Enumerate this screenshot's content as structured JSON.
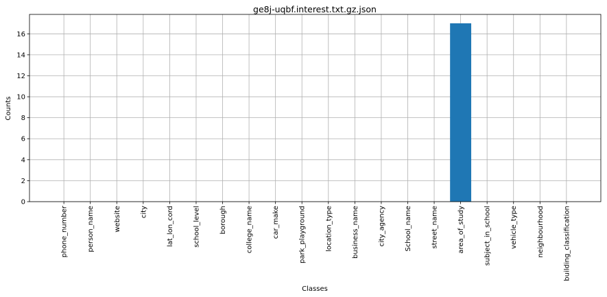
{
  "chart_data": {
    "type": "bar",
    "title": "ge8j-uqbf.interest.txt.gz.json",
    "xlabel": "Classes",
    "ylabel": "Counts",
    "categories": [
      "phone_number",
      "person_name",
      "website",
      "city",
      "lat_lon_cord",
      "school_level",
      "borough",
      "college_name",
      "car_make",
      "park_playground",
      "location_type",
      "business_name",
      "city_agency",
      "School_name",
      "street_name",
      "area_of_study",
      "subject_in_school",
      "vehicle_type",
      "neighbourhood",
      "building_classification"
    ],
    "values": [
      0,
      0,
      0,
      0,
      0,
      0,
      0,
      0,
      0,
      0,
      0,
      0,
      0,
      0,
      0,
      17,
      0,
      0,
      0,
      0
    ],
    "ylim": [
      0,
      17.85
    ],
    "yticks": [
      0,
      2,
      4,
      6,
      8,
      10,
      12,
      14,
      16
    ],
    "grid": true,
    "bar_color": "#1f77b4",
    "grid_color": "#b0b0b0"
  }
}
